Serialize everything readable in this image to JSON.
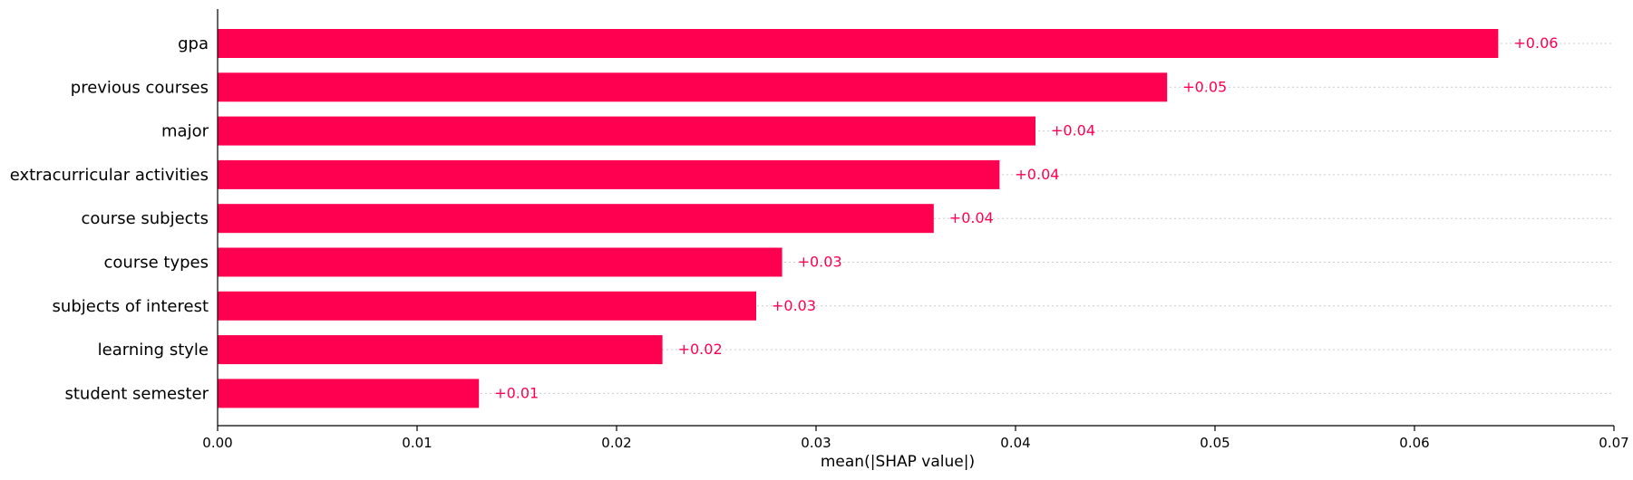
{
  "colors": {
    "bar": "#ff0051",
    "value_label": "#ff0051",
    "gridline": "#cccccc",
    "axis": "#000000"
  },
  "chart_data": {
    "type": "bar",
    "orientation": "horizontal",
    "categories": [
      "gpa",
      "previous courses",
      "major",
      "extracurricular activities",
      "course subjects",
      "course types",
      "subjects of interest",
      "learning style",
      "student semester"
    ],
    "values": [
      0.0642,
      0.0476,
      0.041,
      0.0392,
      0.0359,
      0.0283,
      0.027,
      0.0223,
      0.0131
    ],
    "value_labels": [
      "+0.06",
      "+0.05",
      "+0.04",
      "+0.04",
      "+0.04",
      "+0.03",
      "+0.03",
      "+0.02",
      "+0.01"
    ],
    "xlabel": "mean(|SHAP value|)",
    "ylabel": "",
    "title": "",
    "xlim": [
      0.0,
      0.07
    ],
    "xticks": [
      0.0,
      0.01,
      0.02,
      0.03,
      0.04,
      0.05,
      0.06,
      0.07
    ],
    "xtick_labels": [
      "0.00",
      "0.01",
      "0.02",
      "0.03",
      "0.04",
      "0.05",
      "0.06",
      "0.07"
    ],
    "grid": "dotted horizontal lines per category",
    "legend": "none"
  }
}
